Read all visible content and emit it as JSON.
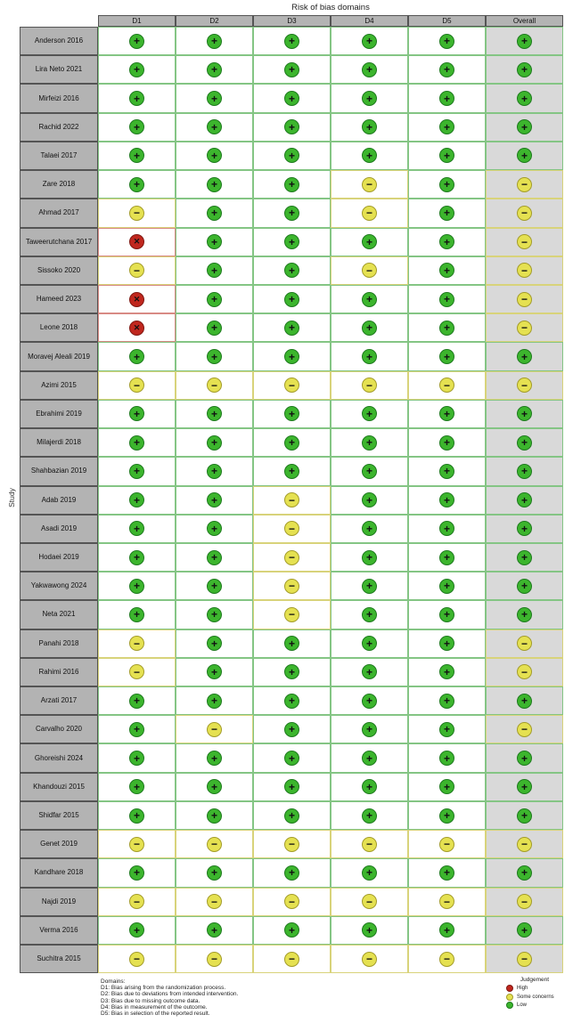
{
  "chart_data": {
    "type": "table",
    "title": "Risk of bias domains",
    "ylabel": "Study",
    "columns": [
      "D1",
      "D2",
      "D3",
      "D4",
      "D5",
      "Overall"
    ],
    "judgement_scale": {
      "low": "Low",
      "some": "Some concerns",
      "high": "High"
    },
    "rows": [
      {
        "study": "Anderson 2016",
        "judgements": [
          "low",
          "low",
          "low",
          "low",
          "low",
          "low"
        ]
      },
      {
        "study": "Lira Neto 2021",
        "judgements": [
          "low",
          "low",
          "low",
          "low",
          "low",
          "low"
        ]
      },
      {
        "study": "Mirfeizi 2016",
        "judgements": [
          "low",
          "low",
          "low",
          "low",
          "low",
          "low"
        ]
      },
      {
        "study": "Rachid 2022",
        "judgements": [
          "low",
          "low",
          "low",
          "low",
          "low",
          "low"
        ]
      },
      {
        "study": "Talaei 2017",
        "judgements": [
          "low",
          "low",
          "low",
          "low",
          "low",
          "low"
        ]
      },
      {
        "study": "Zare 2018",
        "judgements": [
          "low",
          "low",
          "low",
          "some",
          "low",
          "some"
        ]
      },
      {
        "study": "Ahmad 2017",
        "judgements": [
          "some",
          "low",
          "low",
          "some",
          "low",
          "some"
        ]
      },
      {
        "study": "Taweerutchana 2017",
        "judgements": [
          "high",
          "low",
          "low",
          "low",
          "low",
          "some"
        ]
      },
      {
        "study": "Sissoko 2020",
        "judgements": [
          "some",
          "low",
          "low",
          "some",
          "low",
          "some"
        ]
      },
      {
        "study": "Hameed 2023",
        "judgements": [
          "high",
          "low",
          "low",
          "low",
          "low",
          "some"
        ]
      },
      {
        "study": "Leone 2018",
        "judgements": [
          "high",
          "low",
          "low",
          "low",
          "low",
          "some"
        ]
      },
      {
        "study": "Moravej Aleali 2019",
        "judgements": [
          "low",
          "low",
          "low",
          "low",
          "low",
          "low"
        ]
      },
      {
        "study": "Azimi 2015",
        "judgements": [
          "some",
          "some",
          "some",
          "some",
          "some",
          "some"
        ]
      },
      {
        "study": "Ebrahimi 2019",
        "judgements": [
          "low",
          "low",
          "low",
          "low",
          "low",
          "low"
        ]
      },
      {
        "study": "Milajerdi 2018",
        "judgements": [
          "low",
          "low",
          "low",
          "low",
          "low",
          "low"
        ]
      },
      {
        "study": "Shahbazian 2019",
        "judgements": [
          "low",
          "low",
          "low",
          "low",
          "low",
          "low"
        ]
      },
      {
        "study": "Adab 2019",
        "judgements": [
          "low",
          "low",
          "some",
          "low",
          "low",
          "low"
        ]
      },
      {
        "study": "Asadi 2019",
        "judgements": [
          "low",
          "low",
          "some",
          "low",
          "low",
          "low"
        ]
      },
      {
        "study": "Hodaei 2019",
        "judgements": [
          "low",
          "low",
          "some",
          "low",
          "low",
          "low"
        ]
      },
      {
        "study": "Yakwawong 2024",
        "judgements": [
          "low",
          "low",
          "some",
          "low",
          "low",
          "low"
        ]
      },
      {
        "study": "Neta 2021",
        "judgements": [
          "low",
          "low",
          "some",
          "low",
          "low",
          "low"
        ]
      },
      {
        "study": "Panahi 2018",
        "judgements": [
          "some",
          "low",
          "low",
          "low",
          "low",
          "some"
        ]
      },
      {
        "study": "Rahimi 2016",
        "judgements": [
          "some",
          "low",
          "low",
          "low",
          "low",
          "some"
        ]
      },
      {
        "study": "Arzati 2017",
        "judgements": [
          "low",
          "low",
          "low",
          "low",
          "low",
          "low"
        ]
      },
      {
        "study": "Carvalho 2020",
        "judgements": [
          "low",
          "some",
          "low",
          "low",
          "low",
          "some"
        ]
      },
      {
        "study": "Ghoreishi 2024",
        "judgements": [
          "low",
          "low",
          "low",
          "low",
          "low",
          "low"
        ]
      },
      {
        "study": "Khandouzi 2015",
        "judgements": [
          "low",
          "low",
          "low",
          "low",
          "low",
          "low"
        ]
      },
      {
        "study": "Shidfar 2015",
        "judgements": [
          "low",
          "low",
          "low",
          "low",
          "low",
          "low"
        ]
      },
      {
        "study": "Genet 2019",
        "judgements": [
          "some",
          "some",
          "some",
          "some",
          "some",
          "some"
        ]
      },
      {
        "study": "Kandhare 2018",
        "judgements": [
          "low",
          "low",
          "low",
          "low",
          "low",
          "low"
        ]
      },
      {
        "study": "Najdi 2019",
        "judgements": [
          "some",
          "some",
          "some",
          "some",
          "some",
          "some"
        ]
      },
      {
        "study": "Verma 2016",
        "judgements": [
          "low",
          "low",
          "low",
          "low",
          "low",
          "low"
        ]
      },
      {
        "study": "Suchitra 2015",
        "judgements": [
          "some",
          "some",
          "some",
          "some",
          "some",
          "some"
        ]
      }
    ]
  },
  "symbols": {
    "low": "+",
    "some": "−",
    "high": "✕"
  },
  "colors": {
    "low": {
      "fill": "#3cb52d",
      "stroke": "#1e7a1e",
      "cell_border": "#84c584"
    },
    "some": {
      "fill": "#e5e151",
      "stroke": "#a39c2a",
      "cell_border": "#d8d37a"
    },
    "high": {
      "fill": "#c0271e",
      "stroke": "#7f1812",
      "cell_border": "#d88a84"
    }
  },
  "footer": {
    "heading": "Domains:",
    "lines": [
      "D1: Bias arising  from the randomization process.",
      "D2: Bias due to deviations from intended intervention.",
      "D3: Bias due to missing outcome data.",
      "D4: Bias in measurement of the outcome.",
      "D5: Bias in selection of the reported result."
    ]
  },
  "legend": {
    "title": "Judgement",
    "items": [
      {
        "label": "High",
        "level": "high"
      },
      {
        "label": "Some concerns",
        "level": "some"
      },
      {
        "label": "Low",
        "level": "low"
      }
    ]
  }
}
